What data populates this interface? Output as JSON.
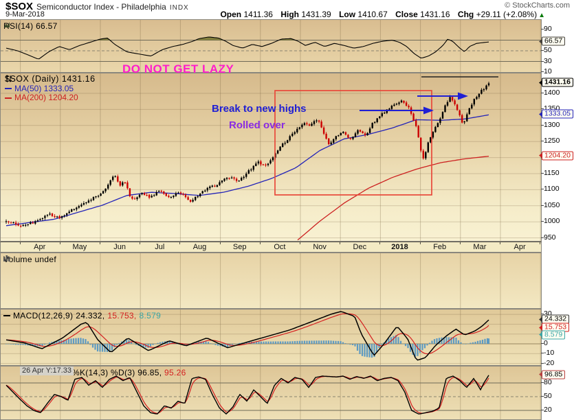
{
  "colors": {
    "candle_up": "#000000",
    "candle_down": "#cc0000",
    "ma50": "#2424b8",
    "ma200": "#cc2020",
    "macd_line": "#000000",
    "macd_signal": "#d42020",
    "macd_hist": "#4f94c4",
    "macd_value3": "#3aa6a6",
    "rsi_fill": "#74742e",
    "annotation_magenta": "#ff1ccb",
    "annotation_blue": "#1f1fd4",
    "annotation_purple": "#8a2be2",
    "annotation_red": "#e8483a",
    "up_green": "#0a7a0a",
    "stoch_d": "#d42020"
  },
  "header": {
    "symbol": "$SOX",
    "symbol_desc": "Semiconductor Index - Philadelphia",
    "exchange": "INDX",
    "date": "9-Mar-2018",
    "credit": "© StockCharts.com",
    "quote": {
      "open_label": "Open",
      "open": "1411.36",
      "high_label": "High",
      "high": "1431.39",
      "low_label": "Low",
      "low": "1410.67",
      "close_label": "Close",
      "close": "1431.16",
      "chg_label": "Chg",
      "chg": "+29.11 (+2.08%)",
      "direction": "▲"
    }
  },
  "panels": {
    "rsi": {
      "label": "RSI(14) 66.57"
    },
    "main": {
      "legend_symbol": "$SOX (Daily) 1431.16",
      "legend_ma50": "MA(50) 1333.05",
      "legend_ma200": "MA(200) 1204.20",
      "annotation_warning": "DO NOT GET LAZY",
      "annotation_break": "Break to new highs",
      "annotation_rolled": "Rolled over"
    },
    "volume": {
      "label": "Volume undef"
    },
    "macd": {
      "label": "MACD(12,26,9)",
      "value1": "24.332,",
      "value2": "15.753,",
      "value3": "8.579"
    },
    "stoch": {
      "tooltip": "26 Apr Y:17.33",
      "label": "%K(14,3) %D(3)",
      "value1": "96.85,",
      "value2": "95.26"
    },
    "callouts": {
      "rsi": "66.57",
      "price": "1431.16",
      "ma50": "1333.05",
      "ma200": "1204.20",
      "macd1": "24.332",
      "macd2": "15.753",
      "macd3": "8.579",
      "stoch": "96.85"
    }
  },
  "chart_data": {
    "type": "candlestick",
    "title": "$SOX Semiconductor Index - Philadelphia INDX (Daily)",
    "date": "9-Mar-2018",
    "quote": {
      "open": 1411.36,
      "high": 1431.39,
      "low": 1410.67,
      "close": 1431.16,
      "chg_pct": 2.08
    },
    "x_axis": {
      "labels": [
        "Apr",
        "May",
        "Jun",
        "Jul",
        "Aug",
        "Sep",
        "Oct",
        "Nov",
        "Dec",
        "2018",
        "Feb",
        "Mar",
        "Apr"
      ],
      "start": "Apr 2017",
      "end": "Apr 2018"
    },
    "price_panel": {
      "y_ticks": [
        1400,
        1350,
        1300,
        1250,
        1200,
        1150,
        1100,
        1050,
        1000,
        950
      ],
      "ylim": [
        936,
        1462
      ],
      "last_close": 1431.16,
      "ma50": 1333.05,
      "ma200": 1204.2,
      "close_path": [
        [
          0,
          1005
        ],
        [
          0.03,
          985
        ],
        [
          0.06,
          1000
        ],
        [
          0.09,
          1025
        ],
        [
          0.11,
          1010
        ],
        [
          0.14,
          1040
        ],
        [
          0.17,
          1065
        ],
        [
          0.2,
          1090
        ],
        [
          0.225,
          1148
        ],
        [
          0.235,
          1112
        ],
        [
          0.245,
          1128
        ],
        [
          0.26,
          1068
        ],
        [
          0.28,
          1088
        ],
        [
          0.3,
          1076
        ],
        [
          0.32,
          1100
        ],
        [
          0.335,
          1072
        ],
        [
          0.36,
          1094
        ],
        [
          0.38,
          1060
        ],
        [
          0.4,
          1086
        ],
        [
          0.42,
          1106
        ],
        [
          0.44,
          1118
        ],
        [
          0.46,
          1140
        ],
        [
          0.48,
          1126
        ],
        [
          0.5,
          1154
        ],
        [
          0.52,
          1186
        ],
        [
          0.54,
          1174
        ],
        [
          0.56,
          1220
        ],
        [
          0.58,
          1252
        ],
        [
          0.6,
          1285
        ],
        [
          0.615,
          1308
        ],
        [
          0.63,
          1298
        ],
        [
          0.645,
          1322
        ],
        [
          0.66,
          1268
        ],
        [
          0.67,
          1235
        ],
        [
          0.68,
          1262
        ],
        [
          0.7,
          1280
        ],
        [
          0.715,
          1254
        ],
        [
          0.73,
          1288
        ],
        [
          0.745,
          1268
        ],
        [
          0.76,
          1308
        ],
        [
          0.78,
          1338
        ],
        [
          0.8,
          1362
        ],
        [
          0.82,
          1380
        ],
        [
          0.835,
          1352
        ],
        [
          0.85,
          1296
        ],
        [
          0.858,
          1230
        ],
        [
          0.865,
          1192
        ],
        [
          0.875,
          1250
        ],
        [
          0.885,
          1285
        ],
        [
          0.895,
          1308
        ],
        [
          0.91,
          1362
        ],
        [
          0.92,
          1390
        ],
        [
          0.93,
          1368
        ],
        [
          0.94,
          1330
        ],
        [
          0.947,
          1300
        ],
        [
          0.958,
          1348
        ],
        [
          0.97,
          1382
        ],
        [
          0.985,
          1408
        ],
        [
          1,
          1431.16
        ]
      ],
      "ma50_path": [
        [
          0,
          988
        ],
        [
          0.1,
          1008
        ],
        [
          0.2,
          1052
        ],
        [
          0.25,
          1082
        ],
        [
          0.3,
          1092
        ],
        [
          0.35,
          1088
        ],
        [
          0.4,
          1082
        ],
        [
          0.45,
          1092
        ],
        [
          0.5,
          1110
        ],
        [
          0.55,
          1135
        ],
        [
          0.6,
          1168
        ],
        [
          0.65,
          1222
        ],
        [
          0.7,
          1258
        ],
        [
          0.75,
          1272
        ],
        [
          0.8,
          1292
        ],
        [
          0.85,
          1318
        ],
        [
          0.9,
          1316
        ],
        [
          0.95,
          1320
        ],
        [
          1,
          1333.05
        ]
      ],
      "ma200_path": [
        [
          0.6,
          938
        ],
        [
          0.65,
          1002
        ],
        [
          0.7,
          1058
        ],
        [
          0.75,
          1104
        ],
        [
          0.8,
          1138
        ],
        [
          0.85,
          1164
        ],
        [
          0.9,
          1184
        ],
        [
          0.95,
          1196
        ],
        [
          1,
          1204.2
        ]
      ]
    },
    "rsi_panel": {
      "period": 14,
      "last": 66.57,
      "y_ticks": [
        90,
        50,
        30,
        10
      ],
      "overbought": 70,
      "oversold": 30,
      "midline": 50,
      "path": [
        [
          0,
          55
        ],
        [
          0.024,
          50
        ],
        [
          0.046,
          42
        ],
        [
          0.067,
          34
        ],
        [
          0.088,
          48
        ],
        [
          0.11,
          58
        ],
        [
          0.131,
          52
        ],
        [
          0.152,
          60
        ],
        [
          0.174,
          66
        ],
        [
          0.195,
          72
        ],
        [
          0.21,
          74
        ],
        [
          0.225,
          62
        ],
        [
          0.25,
          48
        ],
        [
          0.275,
          44
        ],
        [
          0.3,
          40
        ],
        [
          0.323,
          52
        ],
        [
          0.345,
          58
        ],
        [
          0.366,
          62
        ],
        [
          0.387,
          68
        ],
        [
          0.4,
          73
        ],
        [
          0.42,
          76
        ],
        [
          0.44,
          74
        ],
        [
          0.455,
          68
        ],
        [
          0.47,
          60
        ],
        [
          0.49,
          55
        ],
        [
          0.51,
          62
        ],
        [
          0.53,
          58
        ],
        [
          0.55,
          64
        ],
        [
          0.57,
          72
        ],
        [
          0.59,
          73
        ],
        [
          0.605,
          68
        ],
        [
          0.62,
          60
        ],
        [
          0.64,
          66
        ],
        [
          0.66,
          58
        ],
        [
          0.68,
          64
        ],
        [
          0.7,
          60
        ],
        [
          0.72,
          55
        ],
        [
          0.74,
          58
        ],
        [
          0.76,
          64
        ],
        [
          0.78,
          68
        ],
        [
          0.8,
          70
        ],
        [
          0.815,
          66
        ],
        [
          0.83,
          58
        ],
        [
          0.845,
          45
        ],
        [
          0.86,
          36
        ],
        [
          0.875,
          40
        ],
        [
          0.89,
          48
        ],
        [
          0.905,
          60
        ],
        [
          0.915,
          72
        ],
        [
          0.925,
          68
        ],
        [
          0.94,
          55
        ],
        [
          0.95,
          48
        ],
        [
          0.96,
          58
        ],
        [
          0.975,
          64
        ],
        [
          1,
          66.57
        ]
      ]
    },
    "volume_panel": {
      "status": "undef",
      "values": []
    },
    "macd_panel": {
      "params": [
        12,
        26,
        9
      ],
      "last": [
        24.332,
        15.753,
        8.579
      ],
      "y_ticks": [
        30,
        0,
        -10,
        -20
      ],
      "macd_path": [
        [
          0,
          4
        ],
        [
          0.038,
          1
        ],
        [
          0.074,
          -5
        ],
        [
          0.117,
          6
        ],
        [
          0.155,
          20
        ],
        [
          0.167,
          22
        ],
        [
          0.19,
          4
        ],
        [
          0.217,
          -9
        ],
        [
          0.252,
          6
        ],
        [
          0.295,
          -7
        ],
        [
          0.338,
          3
        ],
        [
          0.373,
          -2
        ],
        [
          0.416,
          6
        ],
        [
          0.459,
          -4
        ],
        [
          0.501,
          2
        ],
        [
          0.544,
          8
        ],
        [
          0.587,
          14
        ],
        [
          0.63,
          22
        ],
        [
          0.672,
          30
        ],
        [
          0.694,
          33
        ],
        [
          0.722,
          28
        ],
        [
          0.736,
          10
        ],
        [
          0.762,
          -12
        ],
        [
          0.783,
          0
        ],
        [
          0.81,
          18
        ],
        [
          0.832,
          5
        ],
        [
          0.85,
          -17
        ],
        [
          0.869,
          -14
        ],
        [
          0.889,
          -2
        ],
        [
          0.912,
          8
        ],
        [
          0.932,
          15
        ],
        [
          0.95,
          9
        ],
        [
          0.971,
          13
        ],
        [
          0.986,
          18
        ],
        [
          1,
          24.332
        ]
      ]
    },
    "stoch_panel": {
      "params": "%K(14,3) %D(3)",
      "last": [
        96.85,
        95.26
      ],
      "y_ticks": [
        80,
        50,
        20
      ],
      "k_path": [
        [
          0,
          75
        ],
        [
          0.014,
          60
        ],
        [
          0.028,
          45
        ],
        [
          0.043,
          30
        ],
        [
          0.057,
          20
        ],
        [
          0.071,
          15
        ],
        [
          0.085,
          35
        ],
        [
          0.1,
          55
        ],
        [
          0.114,
          50
        ],
        [
          0.128,
          42
        ],
        [
          0.142,
          88
        ],
        [
          0.157,
          92
        ],
        [
          0.171,
          75
        ],
        [
          0.185,
          85
        ],
        [
          0.199,
          70
        ],
        [
          0.214,
          88
        ],
        [
          0.228,
          95
        ],
        [
          0.242,
          85
        ],
        [
          0.256,
          92
        ],
        [
          0.271,
          60
        ],
        [
          0.285,
          30
        ],
        [
          0.299,
          15
        ],
        [
          0.313,
          12
        ],
        [
          0.328,
          30
        ],
        [
          0.342,
          25
        ],
        [
          0.356,
          40
        ],
        [
          0.37,
          35
        ],
        [
          0.385,
          90
        ],
        [
          0.399,
          93
        ],
        [
          0.413,
          88
        ],
        [
          0.427,
          55
        ],
        [
          0.442,
          25
        ],
        [
          0.456,
          12
        ],
        [
          0.47,
          28
        ],
        [
          0.484,
          55
        ],
        [
          0.499,
          40
        ],
        [
          0.513,
          65
        ],
        [
          0.527,
          50
        ],
        [
          0.541,
          35
        ],
        [
          0.556,
          75
        ],
        [
          0.57,
          90
        ],
        [
          0.584,
          80
        ],
        [
          0.598,
          92
        ],
        [
          0.613,
          88
        ],
        [
          0.627,
          70
        ],
        [
          0.641,
          92
        ],
        [
          0.655,
          95
        ],
        [
          0.67,
          94
        ],
        [
          0.684,
          93
        ],
        [
          0.698,
          95
        ],
        [
          0.712,
          88
        ],
        [
          0.726,
          94
        ],
        [
          0.741,
          90
        ],
        [
          0.755,
          95
        ],
        [
          0.769,
          85
        ],
        [
          0.783,
          90
        ],
        [
          0.798,
          92
        ],
        [
          0.812,
          85
        ],
        [
          0.826,
          60
        ],
        [
          0.84,
          20
        ],
        [
          0.855,
          12
        ],
        [
          0.869,
          15
        ],
        [
          0.883,
          18
        ],
        [
          0.897,
          25
        ],
        [
          0.912,
          90
        ],
        [
          0.926,
          95
        ],
        [
          0.94,
          85
        ],
        [
          0.954,
          70
        ],
        [
          0.969,
          90
        ],
        [
          0.983,
          65
        ],
        [
          0.99,
          80
        ],
        [
          0.996,
          90
        ],
        [
          1,
          96.85
        ]
      ]
    }
  }
}
